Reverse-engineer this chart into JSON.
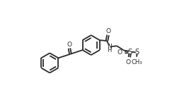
{
  "bg_color": "#ffffff",
  "line_color": "#2a2a2a",
  "line_width": 1.3,
  "fig_width": 2.51,
  "fig_height": 1.52,
  "dpi": 100,
  "xlim": [
    0,
    10
  ],
  "ylim": [
    0,
    6
  ]
}
